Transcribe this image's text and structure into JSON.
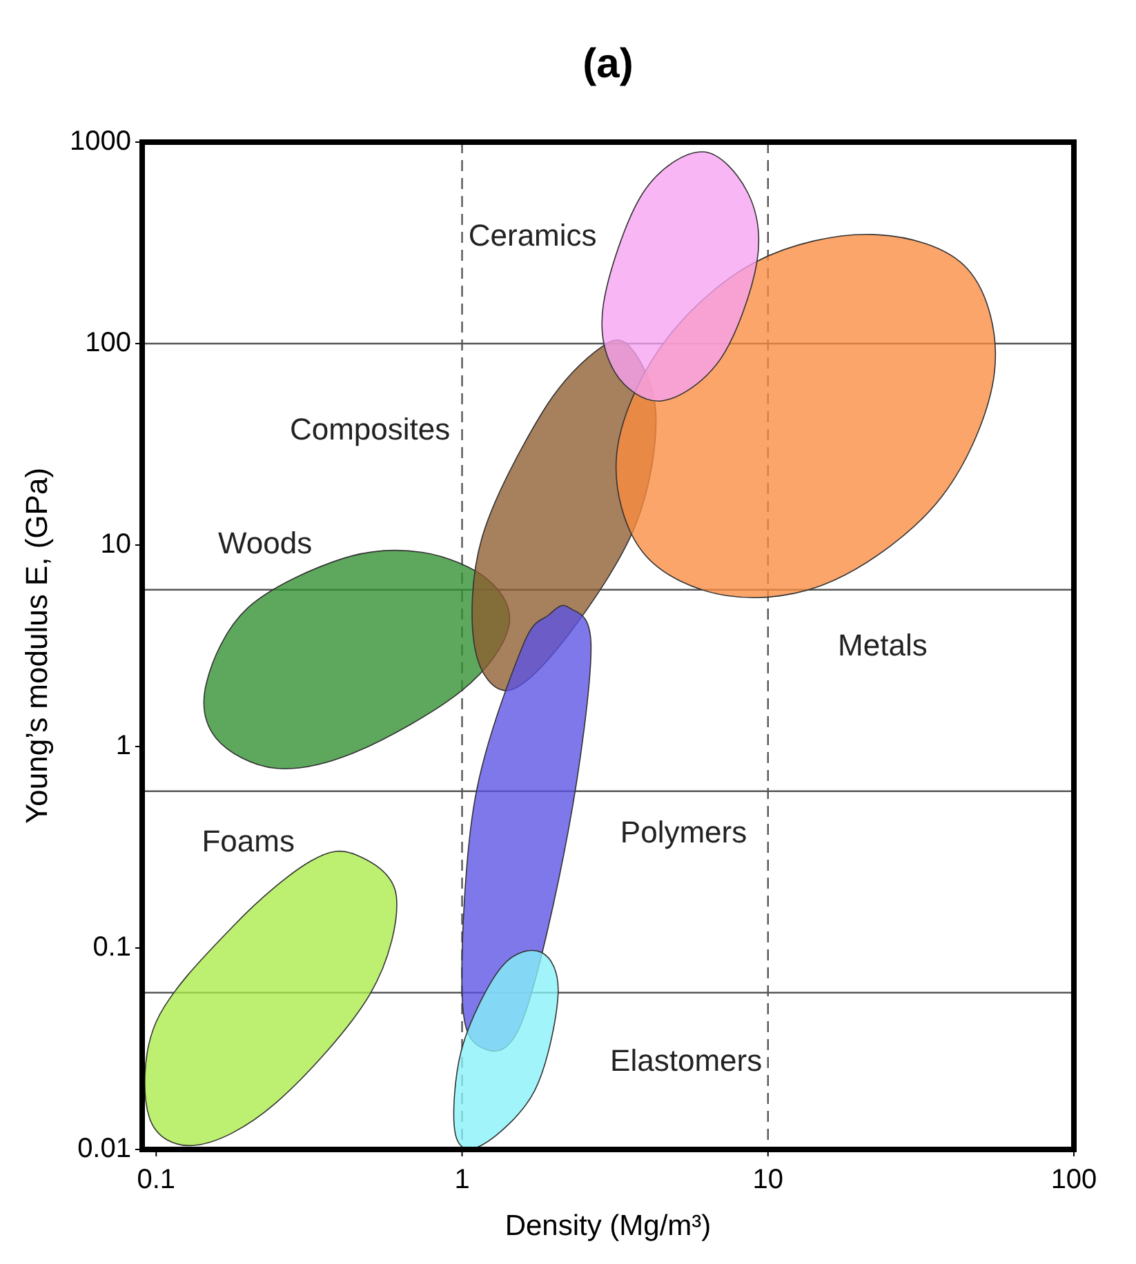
{
  "chart_data": {
    "type": "area",
    "title": "(a)",
    "xlabel": "Density  (Mg/m³)",
    "ylabel": "Young’s modulus E, (GPa)",
    "log": "xy",
    "xlim": [
      0.09,
      100
    ],
    "ylim": [
      0.01,
      1000
    ],
    "xticks": [
      0.1,
      1,
      10,
      100
    ],
    "yticks": [
      0.01,
      0.1,
      1,
      10,
      100,
      1000
    ],
    "ref_lines": [
      {
        "axis": "x",
        "value": 1,
        "line_style": "dashed"
      },
      {
        "axis": "x",
        "value": 10,
        "line_style": "dashed"
      },
      {
        "axis": "y",
        "value": 100
      },
      {
        "axis": "y",
        "value": 6
      },
      {
        "axis": "y",
        "value": 0.6
      },
      {
        "axis": "y",
        "value": 0.06
      }
    ],
    "series": [
      {
        "name": "Woods",
        "color": "#2f8f2f",
        "x": [
          0.146,
          0.2,
          0.41,
          0.74,
          1.22,
          1.42,
          1.0,
          0.45,
          0.246,
          0.157
        ],
        "values": [
          2.07,
          4.9,
          8.6,
          9.2,
          6.7,
          3.9,
          1.9,
          0.94,
          0.78,
          1.1
        ]
      },
      {
        "name": "Foams",
        "color": "#aaea48",
        "x": [
          0.45,
          0.61,
          0.5,
          0.246,
          0.135,
          0.095,
          0.1,
          0.18,
          0.32
        ],
        "values": [
          0.29,
          0.18,
          0.059,
          0.017,
          0.0105,
          0.0144,
          0.043,
          0.13,
          0.27
        ]
      },
      {
        "name": "Composites",
        "color": "#8e5c30",
        "x": [
          3.5,
          4.3,
          3.7,
          2.23,
          1.42,
          1.1,
          1.16,
          1.82,
          2.72
        ],
        "values": [
          98,
          45,
          12.7,
          3.6,
          1.9,
          3.1,
          10.8,
          45,
          91
        ]
      },
      {
        "name": "Polymers",
        "color": "#5a52e6",
        "x": [
          2.23,
          2.64,
          2.23,
          1.57,
          1.16,
          1.0,
          1.1,
          1.57,
          1.92
        ],
        "values": [
          4.9,
          3.1,
          0.39,
          0.043,
          0.032,
          0.059,
          0.54,
          3.1,
          4.5
        ]
      },
      {
        "name": "Elastomers",
        "color": "#86f2f8",
        "x": [
          1.82,
          2.06,
          1.73,
          1.16,
          0.95,
          1.0,
          1.35
        ],
        "values": [
          0.095,
          0.059,
          0.0197,
          0.0105,
          0.012,
          0.032,
          0.081
        ]
      },
      {
        "name": "Metals",
        "color": "#fa8c40",
        "x": [
          3.2,
          4.5,
          9.1,
          22,
          45,
          55,
          37,
          16.5,
          7.4,
          3.9
        ],
        "values": [
          28,
          98,
          254,
          348,
          234,
          72,
          17.4,
          6.7,
          5.6,
          9.2
        ]
      },
      {
        "name": "Ceramics",
        "color": "#f7a2f2",
        "x": [
          6.1,
          8.6,
          9.2,
          7.0,
          4.5,
          3.16,
          2.9,
          3.9
        ],
        "values": [
          895,
          559,
          254,
          84,
          52,
          72,
          158,
          559
        ]
      }
    ]
  }
}
